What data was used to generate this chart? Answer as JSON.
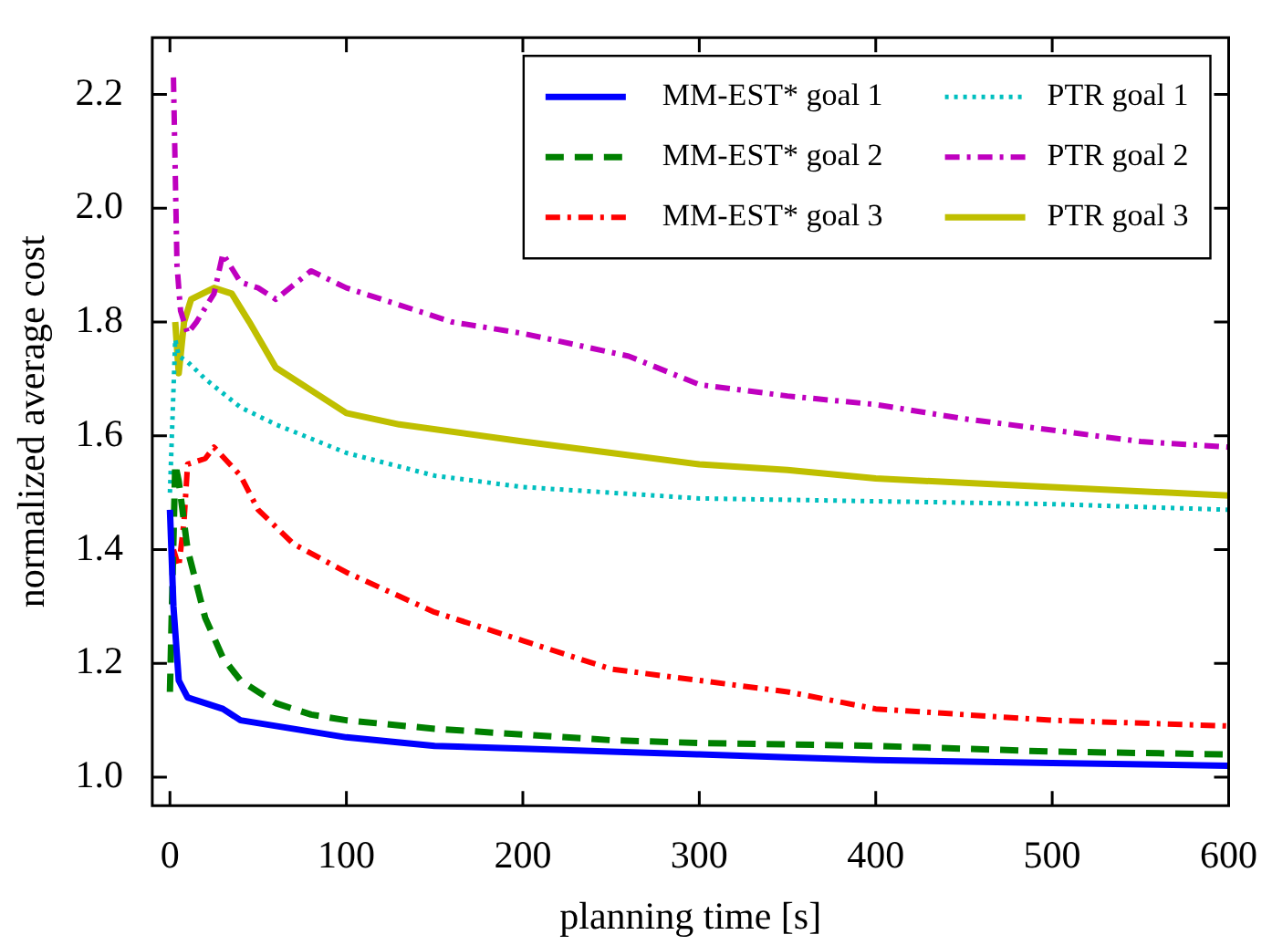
{
  "chart_data": {
    "type": "line",
    "xlabel": "planning time [s]",
    "ylabel": "normalized average cost",
    "xlim": [
      -10,
      600
    ],
    "xticks": [
      0,
      100,
      200,
      300,
      400,
      500,
      600
    ],
    "ylim": [
      0.95,
      2.3
    ],
    "yticks": [
      {
        "value": 1,
        "label": "1.0"
      },
      1.2,
      1.4,
      1.6,
      1.8,
      {
        "value": 2,
        "label": "2.0"
      },
      2.2
    ],
    "grid": false,
    "legend": "top right",
    "marker": "none",
    "series": [
      {
        "name": "MM-EST* goal 1",
        "color": "#0000ff",
        "line_style": "solid",
        "x": [
          0,
          2,
          5,
          10,
          20,
          30,
          40,
          60,
          100,
          150,
          200,
          250,
          300,
          350,
          400,
          500,
          600
        ],
        "values": [
          1.47,
          1.3,
          1.17,
          1.14,
          1.13,
          1.12,
          1.1,
          1.09,
          1.07,
          1.055,
          1.05,
          1.045,
          1.04,
          1.035,
          1.03,
          1.025,
          1.02
        ]
      },
      {
        "name": "MM-EST* goal 2",
        "color": "#008000",
        "line_style": "dashed",
        "x": [
          0,
          3,
          5,
          10,
          20,
          30,
          40,
          60,
          80,
          100,
          150,
          200,
          250,
          300,
          400,
          500,
          600
        ],
        "values": [
          1.15,
          1.55,
          1.52,
          1.4,
          1.28,
          1.21,
          1.17,
          1.13,
          1.11,
          1.1,
          1.085,
          1.075,
          1.065,
          1.06,
          1.055,
          1.045,
          1.04
        ]
      },
      {
        "name": "MM-EST* goal 3",
        "color": "#ff0000",
        "line_style": "dashdot",
        "x": [
          2,
          5,
          8,
          10,
          20,
          25,
          40,
          50,
          70,
          100,
          150,
          200,
          250,
          300,
          350,
          400,
          450,
          500,
          600
        ],
        "values": [
          1.4,
          1.37,
          1.45,
          1.55,
          1.56,
          1.58,
          1.53,
          1.47,
          1.41,
          1.36,
          1.29,
          1.24,
          1.19,
          1.17,
          1.15,
          1.12,
          1.11,
          1.1,
          1.09
        ]
      },
      {
        "name": "PTR goal 1",
        "color": "#00bfbf",
        "line_style": "dotted",
        "x": [
          0,
          3,
          5,
          10,
          20,
          40,
          60,
          100,
          150,
          200,
          300,
          400,
          500,
          600
        ],
        "values": [
          1.5,
          1.77,
          1.74,
          1.73,
          1.7,
          1.65,
          1.62,
          1.57,
          1.53,
          1.51,
          1.49,
          1.485,
          1.48,
          1.47
        ]
      },
      {
        "name": "PTR goal 2",
        "color": "#bf00bf",
        "line_style": "dashdot",
        "x": [
          2,
          4,
          6,
          10,
          15,
          25,
          30,
          40,
          50,
          60,
          80,
          100,
          130,
          160,
          200,
          230,
          260,
          300,
          350,
          400,
          450,
          500,
          550,
          600
        ],
        "values": [
          2.23,
          1.9,
          1.82,
          1.78,
          1.8,
          1.85,
          1.92,
          1.87,
          1.86,
          1.84,
          1.89,
          1.86,
          1.83,
          1.8,
          1.78,
          1.76,
          1.74,
          1.69,
          1.67,
          1.655,
          1.63,
          1.61,
          1.59,
          1.58
        ]
      },
      {
        "name": "PTR goal 3",
        "color": "#bfbf00",
        "line_style": "solid",
        "x": [
          3,
          5,
          8,
          12,
          25,
          35,
          45,
          60,
          80,
          100,
          130,
          200,
          250,
          300,
          350,
          400,
          500,
          600
        ],
        "values": [
          1.8,
          1.71,
          1.8,
          1.84,
          1.86,
          1.85,
          1.8,
          1.72,
          1.68,
          1.64,
          1.62,
          1.59,
          1.57,
          1.55,
          1.54,
          1.525,
          1.51,
          1.495
        ]
      }
    ]
  }
}
